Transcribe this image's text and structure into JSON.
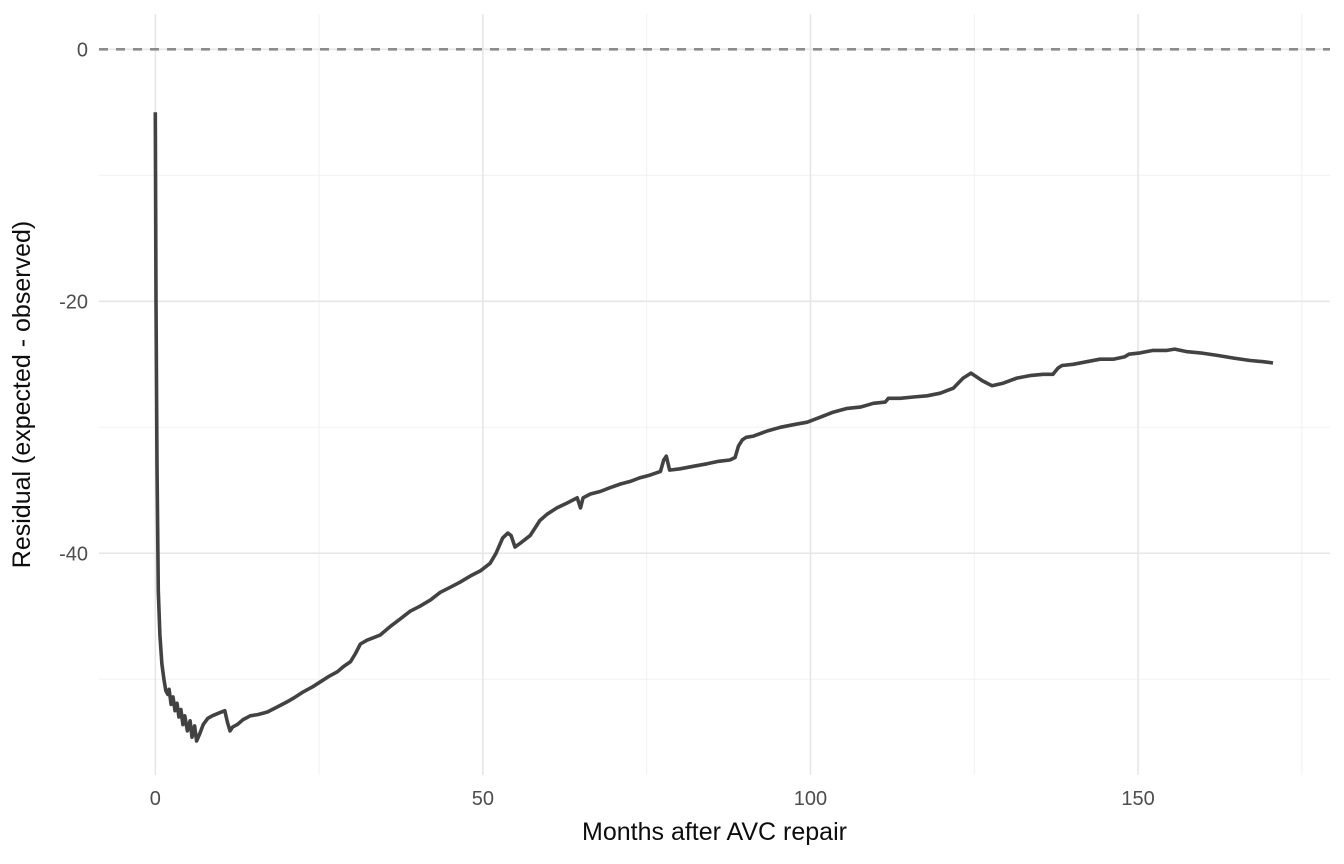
{
  "chart_data": {
    "type": "line",
    "title": "",
    "xlabel": "Months after AVC repair",
    "ylabel": "Residual (expected - observed)",
    "xlim": [
      -8.6,
      179.3
    ],
    "ylim": [
      -57.6,
      2.8
    ],
    "x_ticks": [
      0,
      50,
      100,
      150
    ],
    "x_tick_labels": [
      "0",
      "50",
      "100",
      "150"
    ],
    "x_minor_ticks": [
      25,
      75,
      125,
      175
    ],
    "y_ticks": [
      0,
      -20,
      -40
    ],
    "y_tick_labels": [
      "0",
      "-20",
      "-40"
    ],
    "y_minor_ticks": [
      -10,
      -30,
      -50
    ],
    "grid": "on",
    "legend": "none",
    "reference_line": {
      "y": 0,
      "style": "dashed"
    },
    "series": [
      {
        "name": "residual",
        "points": [
          [
            0,
            -5.0
          ],
          [
            0.1,
            -20.0
          ],
          [
            0.25,
            -33.0
          ],
          [
            0.45,
            -43.0
          ],
          [
            0.7,
            -46.5
          ],
          [
            1.0,
            -48.8
          ],
          [
            1.3,
            -50.0
          ],
          [
            1.6,
            -50.9
          ],
          [
            1.9,
            -51.2
          ],
          [
            2.1,
            -50.8
          ],
          [
            2.4,
            -52.0
          ],
          [
            2.7,
            -51.4
          ],
          [
            3.0,
            -52.5
          ],
          [
            3.3,
            -51.9
          ],
          [
            3.6,
            -53.0
          ],
          [
            3.9,
            -52.4
          ],
          [
            4.2,
            -53.6
          ],
          [
            4.5,
            -52.9
          ],
          [
            4.9,
            -54.1
          ],
          [
            5.3,
            -53.3
          ],
          [
            5.6,
            -54.6
          ],
          [
            6.0,
            -53.7
          ],
          [
            6.3,
            -54.9
          ],
          [
            6.8,
            -54.3
          ],
          [
            7.3,
            -53.6
          ],
          [
            8.0,
            -53.1
          ],
          [
            8.7,
            -52.9
          ],
          [
            9.6,
            -52.7
          ],
          [
            10.6,
            -52.5
          ],
          [
            11.0,
            -53.4
          ],
          [
            11.4,
            -54.1
          ],
          [
            11.8,
            -53.8
          ],
          [
            12.5,
            -53.6
          ],
          [
            13.4,
            -53.2
          ],
          [
            14.5,
            -52.9
          ],
          [
            15.7,
            -52.8
          ],
          [
            17.1,
            -52.6
          ],
          [
            18.6,
            -52.2
          ],
          [
            20.1,
            -51.8
          ],
          [
            21.4,
            -51.4
          ],
          [
            22.6,
            -51.0
          ],
          [
            24.0,
            -50.6
          ],
          [
            25.2,
            -50.2
          ],
          [
            26.4,
            -49.8
          ],
          [
            27.8,
            -49.4
          ],
          [
            28.7,
            -49.0
          ],
          [
            29.8,
            -48.6
          ],
          [
            30.5,
            -48.0
          ],
          [
            31.3,
            -47.2
          ],
          [
            32.3,
            -46.9
          ],
          [
            33.3,
            -46.7
          ],
          [
            34.3,
            -46.5
          ],
          [
            35.9,
            -45.8
          ],
          [
            37.4,
            -45.2
          ],
          [
            38.9,
            -44.6
          ],
          [
            40.4,
            -44.2
          ],
          [
            42.0,
            -43.7
          ],
          [
            43.5,
            -43.1
          ],
          [
            45.0,
            -42.7
          ],
          [
            46.5,
            -42.3
          ],
          [
            48.1,
            -41.8
          ],
          [
            49.6,
            -41.4
          ],
          [
            51.1,
            -40.8
          ],
          [
            52.0,
            -40.0
          ],
          [
            53.0,
            -38.8
          ],
          [
            53.8,
            -38.4
          ],
          [
            54.3,
            -38.6
          ],
          [
            54.9,
            -39.5
          ],
          [
            55.7,
            -39.2
          ],
          [
            57.2,
            -38.6
          ],
          [
            58.7,
            -37.4
          ],
          [
            59.8,
            -36.9
          ],
          [
            61.3,
            -36.4
          ],
          [
            62.9,
            -36.0
          ],
          [
            64.4,
            -35.6
          ],
          [
            64.9,
            -36.4
          ],
          [
            65.3,
            -35.6
          ],
          [
            66.4,
            -35.3
          ],
          [
            67.9,
            -35.1
          ],
          [
            69.4,
            -34.8
          ],
          [
            71.0,
            -34.5
          ],
          [
            72.5,
            -34.3
          ],
          [
            74.0,
            -34.0
          ],
          [
            75.5,
            -33.8
          ],
          [
            77.1,
            -33.5
          ],
          [
            77.6,
            -32.6
          ],
          [
            78.0,
            -32.3
          ],
          [
            78.5,
            -33.4
          ],
          [
            80.1,
            -33.3
          ],
          [
            82.1,
            -33.1
          ],
          [
            84.2,
            -32.9
          ],
          [
            86.0,
            -32.7
          ],
          [
            87.7,
            -32.6
          ],
          [
            88.5,
            -32.4
          ],
          [
            89.0,
            -31.5
          ],
          [
            89.6,
            -31.0
          ],
          [
            90.2,
            -30.8
          ],
          [
            91.3,
            -30.7
          ],
          [
            93.4,
            -30.3
          ],
          [
            95.4,
            -30.0
          ],
          [
            97.4,
            -29.8
          ],
          [
            99.5,
            -29.6
          ],
          [
            101.5,
            -29.2
          ],
          [
            103.5,
            -28.8
          ],
          [
            105.6,
            -28.5
          ],
          [
            107.6,
            -28.4
          ],
          [
            109.6,
            -28.1
          ],
          [
            111.4,
            -28.0
          ],
          [
            111.9,
            -27.7
          ],
          [
            113.7,
            -27.7
          ],
          [
            115.7,
            -27.6
          ],
          [
            117.8,
            -27.5
          ],
          [
            119.8,
            -27.3
          ],
          [
            121.8,
            -26.9
          ],
          [
            123.3,
            -26.1
          ],
          [
            124.5,
            -25.7
          ],
          [
            126.2,
            -26.3
          ],
          [
            127.7,
            -26.7
          ],
          [
            129.4,
            -26.5
          ],
          [
            131.5,
            -26.1
          ],
          [
            133.5,
            -25.9
          ],
          [
            135.5,
            -25.8
          ],
          [
            137.0,
            -25.8
          ],
          [
            137.8,
            -25.3
          ],
          [
            138.4,
            -25.1
          ],
          [
            140.1,
            -25.0
          ],
          [
            142.2,
            -24.8
          ],
          [
            144.2,
            -24.6
          ],
          [
            146.2,
            -24.6
          ],
          [
            148.0,
            -24.4
          ],
          [
            148.6,
            -24.2
          ],
          [
            150.3,
            -24.1
          ],
          [
            152.3,
            -23.9
          ],
          [
            154.4,
            -23.9
          ],
          [
            155.6,
            -23.8
          ],
          [
            157.5,
            -24.0
          ],
          [
            159.5,
            -24.1
          ],
          [
            162.1,
            -24.3
          ],
          [
            164.5,
            -24.5
          ],
          [
            167.1,
            -24.7
          ],
          [
            169.1,
            -24.8
          ],
          [
            170.6,
            -24.9
          ]
        ]
      }
    ],
    "colors": {
      "line": "#424242",
      "reference_line": "#8c8c8c",
      "grid_major": "#e6e6e6",
      "grid_minor": "#f2f2f2",
      "tick_label": "#4d4d4d",
      "axis_title": "#0d0d0d",
      "background": "#ffffff"
    }
  }
}
